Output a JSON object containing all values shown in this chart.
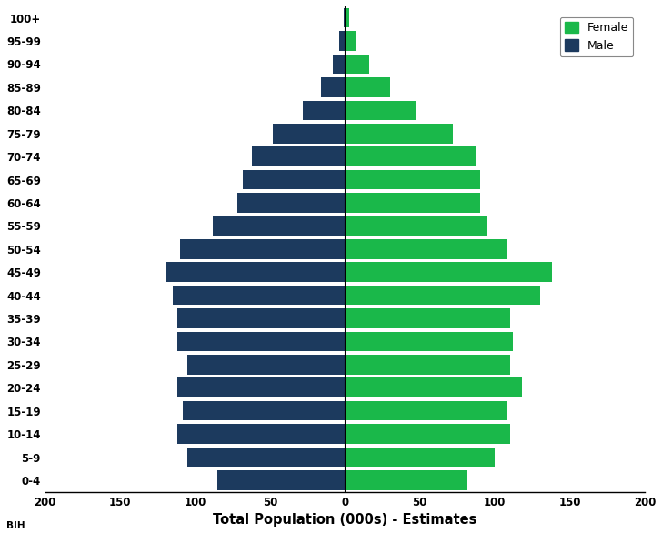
{
  "age_groups": [
    "0-4",
    "5-9",
    "10-14",
    "15-19",
    "20-24",
    "25-29",
    "30-34",
    "35-39",
    "40-44",
    "45-49",
    "50-54",
    "55-59",
    "60-64",
    "65-69",
    "70-74",
    "75-79",
    "80-84",
    "85-89",
    "90-94",
    "95-99",
    "100+"
  ],
  "male": [
    85,
    105,
    112,
    108,
    112,
    105,
    112,
    112,
    115,
    120,
    110,
    88,
    72,
    68,
    62,
    48,
    28,
    16,
    8,
    4,
    1
  ],
  "female": [
    82,
    100,
    110,
    108,
    118,
    110,
    112,
    110,
    130,
    138,
    108,
    95,
    90,
    90,
    88,
    72,
    48,
    30,
    16,
    8,
    3
  ],
  "male_color": "#1c3a5e",
  "female_color": "#1ab84a",
  "xlabel": "Total Population (000s) - Estimates",
  "xlim": [
    -200,
    200
  ],
  "xticks": [
    -200,
    -150,
    -100,
    -50,
    0,
    50,
    100,
    150,
    200
  ],
  "xtick_labels": [
    "200",
    "150",
    "100",
    "50",
    "0",
    "50",
    "100",
    "150",
    "200"
  ],
  "legend_female": "Female",
  "legend_male": "Male",
  "bar_height": 0.85,
  "watermark": "BIH"
}
